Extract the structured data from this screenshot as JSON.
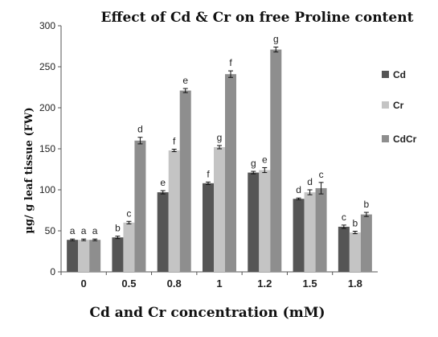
{
  "chart_data": {
    "type": "bar",
    "title": "Effect of Cd & Cr on free Proline content",
    "xlabel": "Cd and Cr concentration (mM)",
    "ylabel": "µg/ g leaf tissue (FW)",
    "ylim": [
      0,
      300
    ],
    "yticks": [
      "0",
      "50",
      "100",
      "150",
      "200",
      "250",
      "300"
    ],
    "categories": [
      "0",
      "0.5",
      "0.8",
      "1",
      "1.2",
      "1.5",
      "1.8"
    ],
    "legend_position": "right",
    "grid": false,
    "series": [
      {
        "name": "Cd",
        "color": "#555555",
        "values": [
          39,
          42,
          97,
          108,
          121,
          89,
          55
        ],
        "errors": [
          1,
          1.5,
          2,
          1.5,
          1.5,
          1,
          2
        ],
        "labels": [
          "a",
          "b",
          "e",
          "f",
          "g",
          "d",
          "c"
        ]
      },
      {
        "name": "Cr",
        "color": "#c4c4c4",
        "values": [
          39,
          60,
          148,
          152,
          124,
          97,
          48
        ],
        "errors": [
          1,
          1.5,
          1.5,
          2,
          3,
          3,
          1.5
        ],
        "labels": [
          "a",
          "c",
          "f",
          "g",
          "e",
          "d",
          "b"
        ]
      },
      {
        "name": "CdCr",
        "color": "#8e8e8e",
        "values": [
          39,
          160,
          221,
          241,
          271,
          102,
          70
        ],
        "errors": [
          1,
          4,
          2.5,
          4,
          3,
          7,
          2.5
        ],
        "labels": [
          "a",
          "d",
          "e",
          "f",
          "g",
          "c",
          "b"
        ]
      }
    ]
  }
}
